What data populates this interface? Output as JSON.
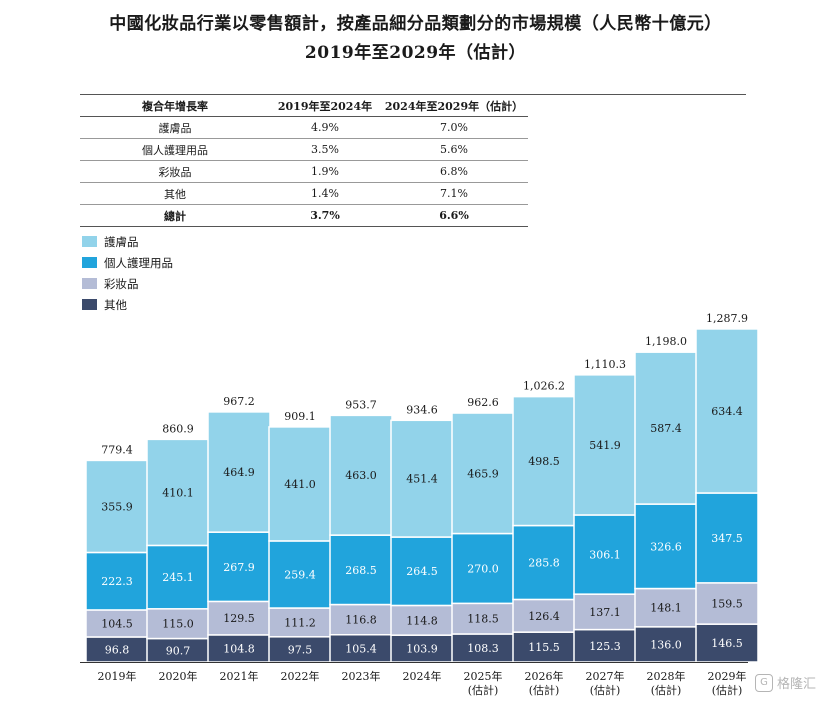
{
  "title_line1": "中國化妝品行業以零售額計，按產品細分品類劃分的市場規模（人民幣十億元）",
  "title_line2": "2019年至2029年（估計）",
  "cagr_table": {
    "headers": [
      "複合年增長率",
      "2019年至2024年",
      "2024年至2029年（估計）"
    ],
    "rows": [
      {
        "label": "護膚品",
        "a": "4.9%",
        "b": "7.0%"
      },
      {
        "label": "個人護理用品",
        "a": "3.5%",
        "b": "5.6%"
      },
      {
        "label": "彩妝品",
        "a": "1.9%",
        "b": "6.8%"
      },
      {
        "label": "其他",
        "a": "1.4%",
        "b": "7.1%"
      }
    ],
    "total": {
      "label": "總計",
      "a": "3.7%",
      "b": "6.6%"
    }
  },
  "watermark": "格隆汇",
  "chart_data": {
    "type": "bar",
    "stacked": true,
    "categories": [
      "2019年",
      "2020年",
      "2021年",
      "2022年",
      "2023年",
      "2024年",
      "2025年\n(估計)",
      "2026年\n(估計)",
      "2027年\n(估計)",
      "2028年\n(估計)",
      "2029年\n(估計)"
    ],
    "series": [
      {
        "name": "其他",
        "color": "#3b4a6b",
        "values": [
          96.8,
          90.7,
          104.8,
          97.5,
          105.4,
          103.9,
          108.3,
          115.5,
          125.3,
          136.0,
          146.5
        ]
      },
      {
        "name": "彩妝品",
        "color": "#b4bcd6",
        "values": [
          104.5,
          115.0,
          129.5,
          111.2,
          116.8,
          114.8,
          118.5,
          126.4,
          137.1,
          148.1,
          159.5
        ]
      },
      {
        "name": "個人護理用品",
        "color": "#21a4dc",
        "values": [
          222.3,
          245.1,
          267.9,
          259.4,
          268.5,
          264.5,
          270.0,
          285.8,
          306.1,
          326.6,
          347.5
        ]
      },
      {
        "name": "護膚品",
        "color": "#92d3ea",
        "values": [
          355.9,
          410.1,
          464.9,
          441.0,
          463.0,
          451.4,
          465.9,
          498.5,
          541.9,
          587.4,
          634.4
        ]
      }
    ],
    "totals": [
      "779.4",
      "860.9",
      "967.2",
      "909.1",
      "953.7",
      "934.6",
      "962.6",
      "1,026.2",
      "1,110.3",
      "1,198.0",
      "1,287.9"
    ],
    "legend_order": [
      "護膚品",
      "個人護理用品",
      "彩妝品",
      "其他"
    ],
    "legend_position": "top-left",
    "grid": false
  }
}
